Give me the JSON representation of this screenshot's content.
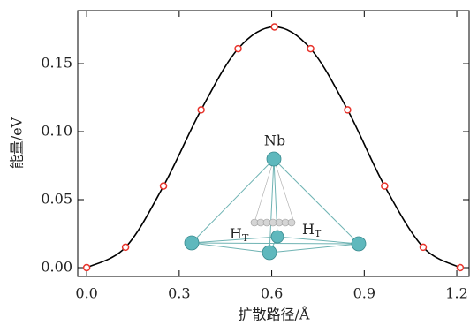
{
  "chart_data": {
    "type": "line",
    "x_label": "扩散路径/Å",
    "y_label": "能量/eV",
    "x": [
      0,
      0.126,
      0.249,
      0.371,
      0.491,
      0.609,
      0.726,
      0.846,
      0.966,
      1.091,
      1.211
    ],
    "series": [
      {
        "color": "#e8342c",
        "line_color": "#000000",
        "values": [
          0,
          0.015,
          0.06,
          0.116,
          0.161,
          0.177,
          0.161,
          0.116,
          0.06,
          0.015,
          0
        ]
      }
    ],
    "xlim": [
      -0.029,
      1.24
    ],
    "ylim": [
      -0.0065,
      0.189
    ],
    "xticks": [
      {
        "value": 0,
        "label": "0.0"
      },
      0.3,
      0.6,
      0.9,
      1.2
    ],
    "yticks": [
      {
        "value": 0,
        "label": "0.00"
      },
      0.05,
      {
        "value": 0.1,
        "label": "0.10"
      },
      0.15
    ],
    "annotations": [
      {
        "text": "Nb"
      },
      {
        "base": "H",
        "sub": "T"
      },
      {
        "base": "H",
        "sub": "T"
      }
    ]
  }
}
